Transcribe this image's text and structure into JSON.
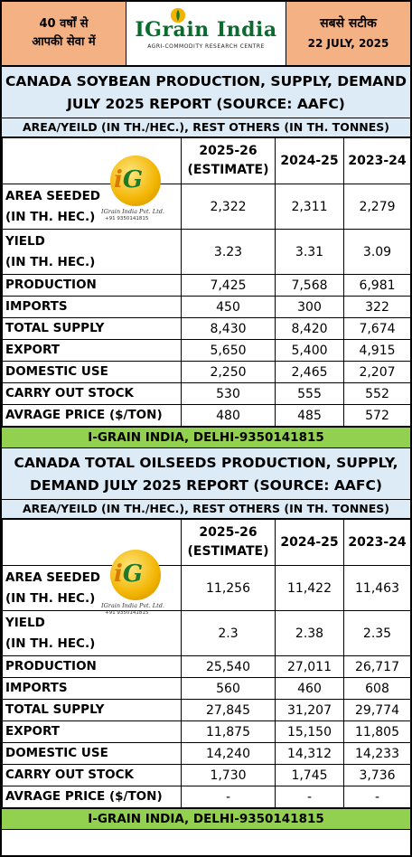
{
  "header": {
    "left_line1": "40 वर्षों से",
    "left_line2": "आपकी सेवा में",
    "brand": "IGrain India",
    "brand_tagline": "AGRI-COMMODITY RESEARCH CENTRE",
    "right_line1": "सबसे सटीक",
    "date": "22 JULY, 2025"
  },
  "watermark": {
    "initials_i": "i",
    "initials_g": "G",
    "company": "IGrain India Pvt. Ltd.",
    "phone": "+91 9350141815"
  },
  "columns": [
    "2025-26",
    "(ESTIMATE)",
    "2024-25",
    "2023-24"
  ],
  "soybean": {
    "title_line1": "CANADA SOYBEAN  PRODUCTION, SUPPLY, DEMAND",
    "title_line2": "JULY 2025 REPORT (SOURCE: AAFC)",
    "subtitle": "AREA/YEILD (IN TH./HEC.), REST OTHERS (IN TH. TONNES)",
    "rows": {
      "area": {
        "label1": "AREA SEEDED",
        "label2": "(IN TH. HEC.)",
        "v1": "2,322",
        "v2": "2,311",
        "v3": "2,279"
      },
      "yield": {
        "label1": "YIELD",
        "label2": "(IN TH. HEC.)",
        "v1": "3.23",
        "v2": "3.31",
        "v3": "3.09"
      },
      "production": {
        "label": "PRODUCTION",
        "v1": "7,425",
        "v2": "7,568",
        "v3": "6,981"
      },
      "imports": {
        "label": "IMPORTS",
        "v1": "450",
        "v2": "300",
        "v3": "322"
      },
      "total_supply": {
        "label": "TOTAL SUPPLY",
        "v1": "8,430",
        "v2": "8,420",
        "v3": "7,674"
      },
      "export": {
        "label": "EXPORT",
        "v1": "5,650",
        "v2": "5,400",
        "v3": "4,915"
      },
      "domestic_use": {
        "label": "DOMESTIC USE",
        "v1": "2,250",
        "v2": "2,465",
        "v3": "2,207"
      },
      "carry_out": {
        "label": "CARRY OUT STOCK",
        "v1": "530",
        "v2": "555",
        "v3": "552"
      },
      "avg_price": {
        "label": "AVRAGE PRICE ($/TON)",
        "v1": "480",
        "v2": "485",
        "v3": "572"
      }
    },
    "footer": "I-GRAIN INDIA, DELHI-9350141815"
  },
  "oilseeds": {
    "title_line1": "CANADA TOTAL OILSEEDS  PRODUCTION, SUPPLY,",
    "title_line2": "DEMAND JULY 2025 REPORT (SOURCE: AAFC)",
    "subtitle": "AREA/YEILD (IN TH./HEC.), REST OTHERS (IN TH. TONNES)",
    "rows": {
      "area": {
        "label1": "AREA SEEDED",
        "label2": "(IN TH. HEC.)",
        "v1": "11,256",
        "v2": "11,422",
        "v3": "11,463"
      },
      "yield": {
        "label1": "YIELD",
        "label2": "(IN TH. HEC.)",
        "v1": "2.3",
        "v2": "2.38",
        "v3": "2.35"
      },
      "production": {
        "label": "PRODUCTION",
        "v1": "25,540",
        "v2": "27,011",
        "v3": "26,717"
      },
      "imports": {
        "label": "IMPORTS",
        "v1": "560",
        "v2": "460",
        "v3": "608"
      },
      "total_supply": {
        "label": "TOTAL SUPPLY",
        "v1": "27,845",
        "v2": "31,207",
        "v3": "29,774"
      },
      "export": {
        "label": "EXPORT",
        "v1": "11,875",
        "v2": "15,150",
        "v3": "11,805"
      },
      "domestic_use": {
        "label": "DOMESTIC USE",
        "v1": "14,240",
        "v2": "14,312",
        "v3": "14,233"
      },
      "carry_out": {
        "label": "CARRY OUT STOCK",
        "v1": "1,730",
        "v2": "1,745",
        "v3": "3,736"
      },
      "avg_price": {
        "label": "AVRAGE PRICE ($/TON)",
        "v1": "-",
        "v2": "-",
        "v3": "-"
      }
    },
    "footer": "I-GRAIN INDIA, DELHI-9350141815"
  },
  "colors": {
    "header_orange": "#f4b183",
    "title_blue": "#ddebf7",
    "footer_green": "#92d050",
    "brand_green": "#0b6b2e"
  }
}
